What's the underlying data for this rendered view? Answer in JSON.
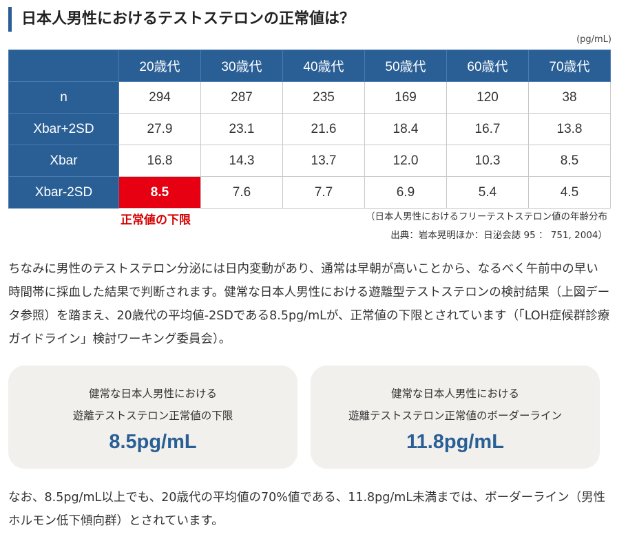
{
  "heading": "日本人男性におけるテストステロンの正常値は？",
  "unit": "(pg/mL)",
  "table": {
    "columns": [
      "",
      "20歳代",
      "30歳代",
      "40歳代",
      "50歳代",
      "60歳代",
      "70歳代"
    ],
    "rows": [
      {
        "label": "n",
        "values": [
          "294",
          "287",
          "235",
          "169",
          "120",
          "38"
        ]
      },
      {
        "label": "Xbar+2SD",
        "values": [
          "27.9",
          "23.1",
          "21.6",
          "18.4",
          "16.7",
          "13.8"
        ]
      },
      {
        "label": "Xbar",
        "values": [
          "16.8",
          "14.3",
          "13.7",
          "12.0",
          "10.3",
          "8.5"
        ]
      },
      {
        "label": "Xbar-2SD",
        "values": [
          "8.5",
          "7.6",
          "7.7",
          "6.9",
          "5.4",
          "4.5"
        ]
      }
    ],
    "highlight_color": "#e60012",
    "header_color": "#2a5f96"
  },
  "lower_limit_label": "正常値の下限",
  "source_line1": "（日本人男性におけるフリーテストステロン値の年齢分布",
  "source_line2": "出典：岩本晃明ほか：日泌会誌 95 ： 751, 2004）",
  "paragraph1": "ちなみに男性のテストステロン分泌には日内変動があり、通常は早朝が高いことから、なるべく午前中の早い時間帯に採血した結果で判断されます。健常な日本人男性における遊離型テストステロンの検討結果（上図データ参照）を踏まえ、20歳代の平均値-2SDである8.5pg/mLが、正常値の下限とされています（「LOH症候群診療ガイドライン」検討ワーキング委員会）。",
  "cards": [
    {
      "line1": "健常な日本人男性における",
      "line2": "遊離テストステロン正常値の下限",
      "value": "8.5pg/mL"
    },
    {
      "line1": "健常な日本人男性における",
      "line2": "遊離テストステロン正常値のボーダーライン",
      "value": "11.8pg/mL"
    }
  ],
  "paragraph2": "なお、8.5pg/mL以上でも、20歳代の平均値の70%値である、11.8pg/mL未満までは、ボーダーライン（男性ホルモン低下傾向群）とされています。"
}
